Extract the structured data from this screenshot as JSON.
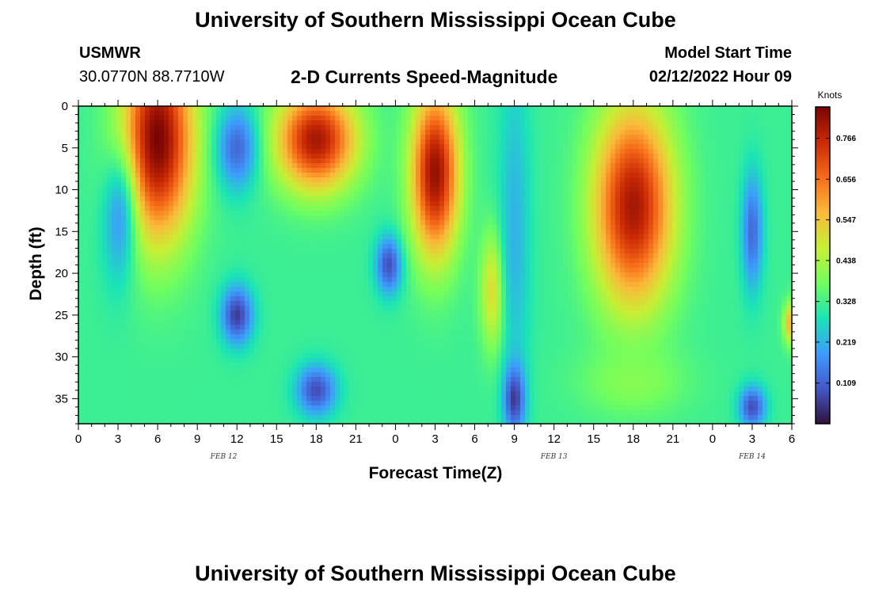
{
  "header": {
    "title": "University of Southern Mississippi Ocean Cube",
    "station_id": "USMWR",
    "station_coords": "30.0770N  88.7710W",
    "subtitle": "2-D Currents Speed-Magnitude",
    "model_start_label": "Model Start Time",
    "model_start_value": "02/12/2022 Hour 09"
  },
  "footer": {
    "title": "University of Southern Mississippi Ocean Cube"
  },
  "chart_data": {
    "type": "heatmap",
    "title": "2-D Currents Speed-Magnitude",
    "xlabel": "Forecast Time(Z)",
    "ylabel": "Depth (ft)",
    "x_range_hours": [
      0,
      54
    ],
    "x_tick_labels": [
      "0",
      "3",
      "6",
      "9",
      "12",
      "15",
      "18",
      "21",
      "0",
      "3",
      "6",
      "9",
      "12",
      "15",
      "18",
      "21",
      "0",
      "3",
      "6"
    ],
    "date_labels": [
      {
        "text": "FEB 12",
        "at_hour": 11
      },
      {
        "text": "FEB 13",
        "at_hour": 36
      },
      {
        "text": "FEB 14",
        "at_hour": 51
      }
    ],
    "y_range_ft": [
      0,
      38
    ],
    "y_ticks": [
      0,
      5,
      10,
      15,
      20,
      25,
      30,
      35
    ],
    "y_inverted": true,
    "colorbar": {
      "label": "Knots",
      "range": [
        0,
        0.85
      ],
      "ticks": [
        0.109,
        0.219,
        0.328,
        0.438,
        0.547,
        0.656,
        0.766
      ],
      "colormap": [
        "#30123b",
        "#4458c9",
        "#3e9bfe",
        "#1ae4b6",
        "#72fe5e",
        "#c8ef34",
        "#faba39",
        "#f66b19",
        "#ca2a04",
        "#7a0403"
      ]
    },
    "field_features": [
      {
        "hour": 6,
        "depth": 4,
        "speed": 0.85,
        "spread_h": 2.7,
        "spread_d": 12
      },
      {
        "hour": 3,
        "depth": 14,
        "speed": 0.2,
        "spread_h": 1.3,
        "spread_d": 8
      },
      {
        "hour": 18,
        "depth": 4,
        "speed": 0.8,
        "spread_h": 3.0,
        "spread_d": 6
      },
      {
        "hour": 12,
        "depth": 5,
        "speed": 0.12,
        "spread_h": 1.5,
        "spread_d": 5
      },
      {
        "hour": 12,
        "depth": 25,
        "speed": 0.06,
        "spread_h": 1.2,
        "spread_d": 3.5
      },
      {
        "hour": 18,
        "depth": 34,
        "speed": 0.08,
        "spread_h": 1.5,
        "spread_d": 3
      },
      {
        "hour": 23.5,
        "depth": 19,
        "speed": 0.08,
        "spread_h": 1.0,
        "spread_d": 3.5
      },
      {
        "hour": 27,
        "depth": 8,
        "speed": 0.82,
        "spread_h": 1.8,
        "spread_d": 10
      },
      {
        "hour": 31.5,
        "depth": 22,
        "speed": 0.55,
        "spread_h": 1.0,
        "spread_d": 7
      },
      {
        "hour": 33,
        "depth": 15,
        "speed": 0.22,
        "spread_h": 1.2,
        "spread_d": 20
      },
      {
        "hour": 33,
        "depth": 35,
        "speed": 0.05,
        "spread_h": 0.8,
        "spread_d": 4
      },
      {
        "hour": 42,
        "depth": 12,
        "speed": 0.8,
        "spread_h": 3.0,
        "spread_d": 12
      },
      {
        "hour": 42,
        "depth": 33,
        "speed": 0.4,
        "spread_h": 4.0,
        "spread_d": 4
      },
      {
        "hour": 51,
        "depth": 15,
        "speed": 0.12,
        "spread_h": 0.8,
        "spread_d": 7
      },
      {
        "hour": 51,
        "depth": 36,
        "speed": 0.08,
        "spread_h": 1.0,
        "spread_d": 2.5
      },
      {
        "hour": 54,
        "depth": 26,
        "speed": 0.6,
        "spread_h": 0.6,
        "spread_d": 2.5
      }
    ]
  }
}
